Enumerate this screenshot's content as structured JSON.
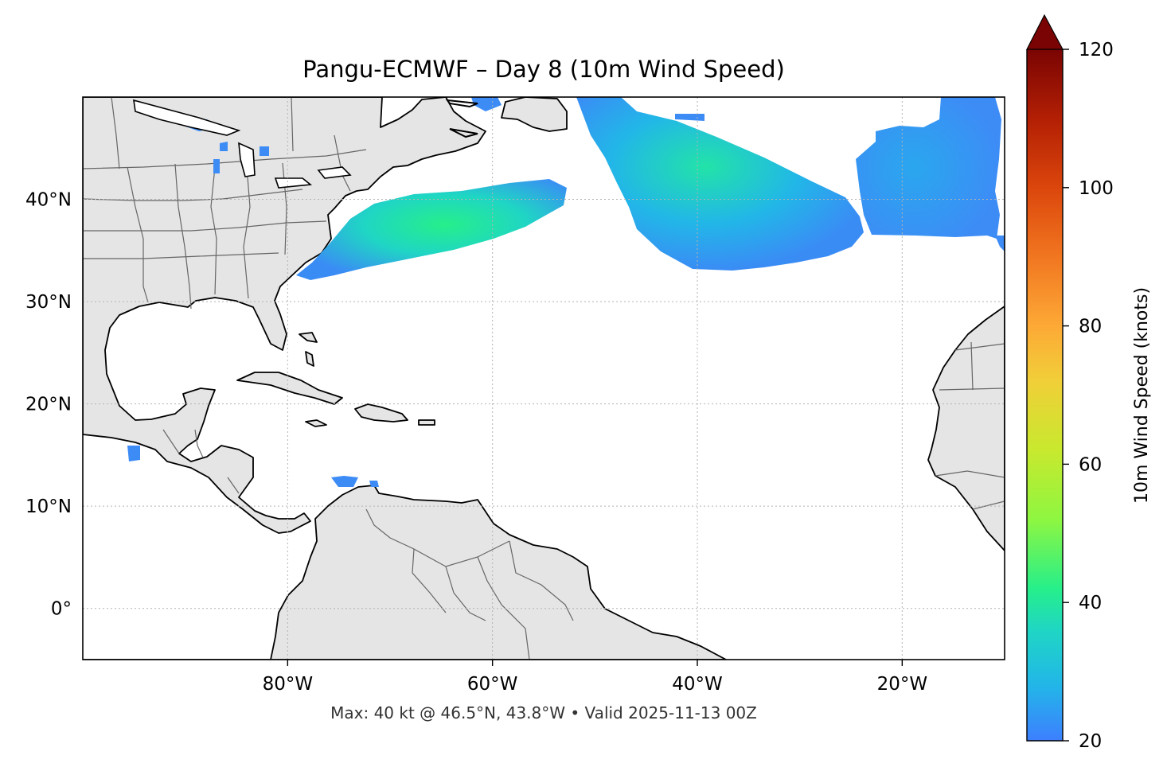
{
  "title": "Pangu-ECMWF – Day 8 (10m Wind Speed)",
  "footer": "Max: 40 kt @ 46.5°N, 43.8°W • Valid 2025-11-13 00Z",
  "map": {
    "extent_lon": [
      -100,
      -10
    ],
    "extent_lat": [
      -5,
      50
    ],
    "lon_ticks": [
      {
        "value": -80,
        "label": "80°W"
      },
      {
        "value": -60,
        "label": "60°W"
      },
      {
        "value": -40,
        "label": "40°W"
      },
      {
        "value": -20,
        "label": "20°W"
      }
    ],
    "lat_ticks": [
      {
        "value": 40,
        "label": "40°N"
      },
      {
        "value": 30,
        "label": "30°N"
      },
      {
        "value": 20,
        "label": "20°N"
      },
      {
        "value": 10,
        "label": "10°N"
      },
      {
        "value": 0,
        "label": "0°"
      }
    ],
    "gridlines": true,
    "land_color": "#e5e5e5",
    "coast_color": "#000000",
    "border_color": "#666666"
  },
  "colorbar": {
    "label": "10m Wind Speed (knots)",
    "min": 20,
    "max": 120,
    "extend": "max",
    "ticks": [
      {
        "value": 20,
        "label": "20"
      },
      {
        "value": 40,
        "label": "40"
      },
      {
        "value": 60,
        "label": "60"
      },
      {
        "value": 80,
        "label": "80"
      },
      {
        "value": 100,
        "label": "100"
      },
      {
        "value": 120,
        "label": "120"
      }
    ],
    "stops": [
      {
        "v": 0.0,
        "c": "#3d7fff"
      },
      {
        "v": 0.08,
        "c": "#22b6e8"
      },
      {
        "v": 0.16,
        "c": "#1fd6c4"
      },
      {
        "v": 0.22,
        "c": "#26ef8a"
      },
      {
        "v": 0.32,
        "c": "#8ef641"
      },
      {
        "v": 0.42,
        "c": "#c8e92e"
      },
      {
        "v": 0.52,
        "c": "#f1cf38"
      },
      {
        "v": 0.6,
        "c": "#fda936"
      },
      {
        "v": 0.7,
        "c": "#f17620"
      },
      {
        "v": 0.8,
        "c": "#db460c"
      },
      {
        "v": 0.9,
        "c": "#b21f04"
      },
      {
        "v": 1.0,
        "c": "#7a0403"
      }
    ]
  },
  "wind_regions": [
    {
      "name": "Atlantic storm north-central",
      "speed_range_kt": [
        20,
        40
      ],
      "peak": {
        "lon": -43.8,
        "lat": 46.5,
        "kt": 40
      }
    },
    {
      "name": "Off US east coast",
      "speed_range_kt": [
        20,
        36
      ]
    },
    {
      "name": "Eastern Atlantic",
      "speed_range_kt": [
        20,
        26
      ]
    },
    {
      "name": "Caribbean small patches",
      "speed_range_kt": [
        20,
        22
      ]
    }
  ]
}
